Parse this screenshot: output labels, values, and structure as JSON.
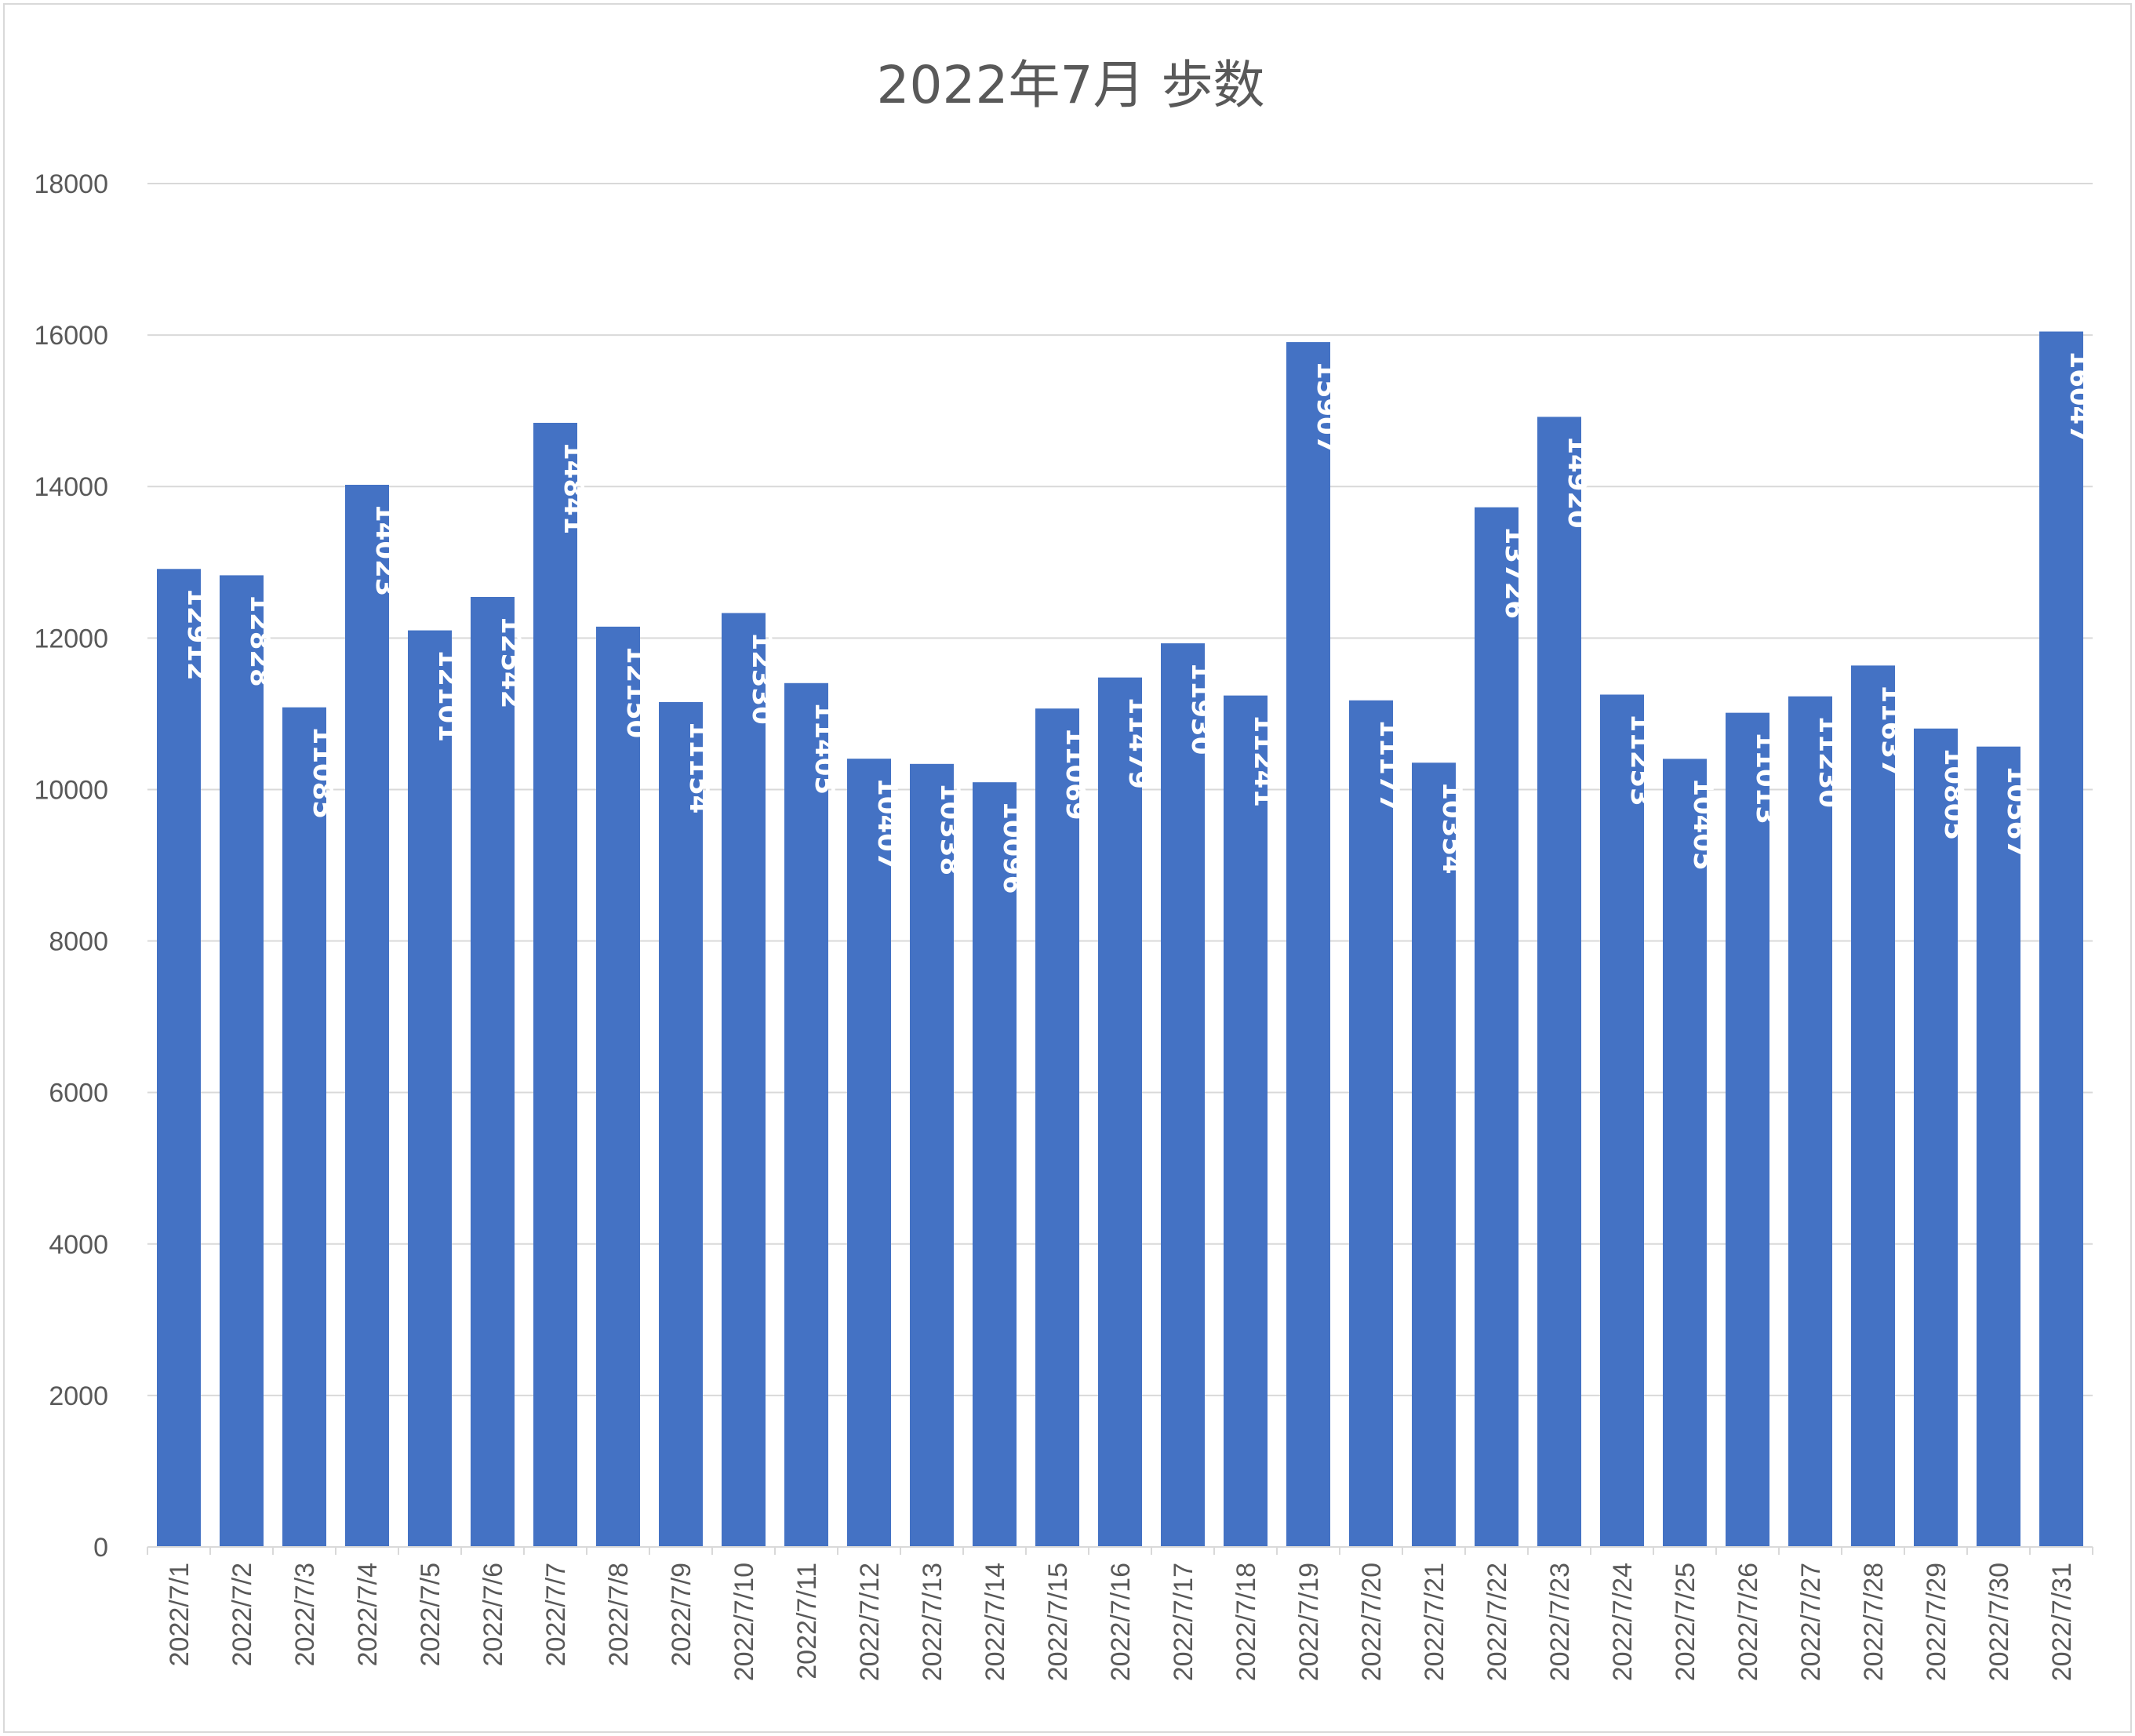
{
  "chart_data": {
    "type": "bar",
    "title": "2022年7月 歩数",
    "xlabel": "",
    "ylabel": "",
    "ylim": [
      0,
      18000
    ],
    "yticks": [
      0,
      2000,
      4000,
      6000,
      8000,
      10000,
      12000,
      14000,
      16000,
      18000
    ],
    "grid": true,
    "legend": "none",
    "data_labels": "inside-end, rotated",
    "bar_color": "#4472C4",
    "categories": [
      "2022/7/1",
      "2022/7/2",
      "2022/7/3",
      "2022/7/4",
      "2022/7/5",
      "2022/7/6",
      "2022/7/7",
      "2022/7/8",
      "2022/7/9",
      "2022/7/10",
      "2022/7/11",
      "2022/7/12",
      "2022/7/13",
      "2022/7/14",
      "2022/7/15",
      "2022/7/16",
      "2022/7/17",
      "2022/7/18",
      "2022/7/19",
      "2022/7/20",
      "2022/7/21",
      "2022/7/22",
      "2022/7/23",
      "2022/7/24",
      "2022/7/25",
      "2022/7/26",
      "2022/7/27",
      "2022/7/28",
      "2022/7/29",
      "2022/7/30",
      "2022/7/31"
    ],
    "values": [
      12912,
      12828,
      11085,
      14023,
      12101,
      12542,
      14841,
      12150,
      11154,
      12330,
      11405,
      10407,
      10338,
      10096,
      11069,
      11479,
      11930,
      11241,
      15907,
      11177,
      10354,
      13726,
      14920,
      11253,
      10405,
      11013,
      11230,
      11637,
      10805,
      10567,
      16047
    ]
  }
}
